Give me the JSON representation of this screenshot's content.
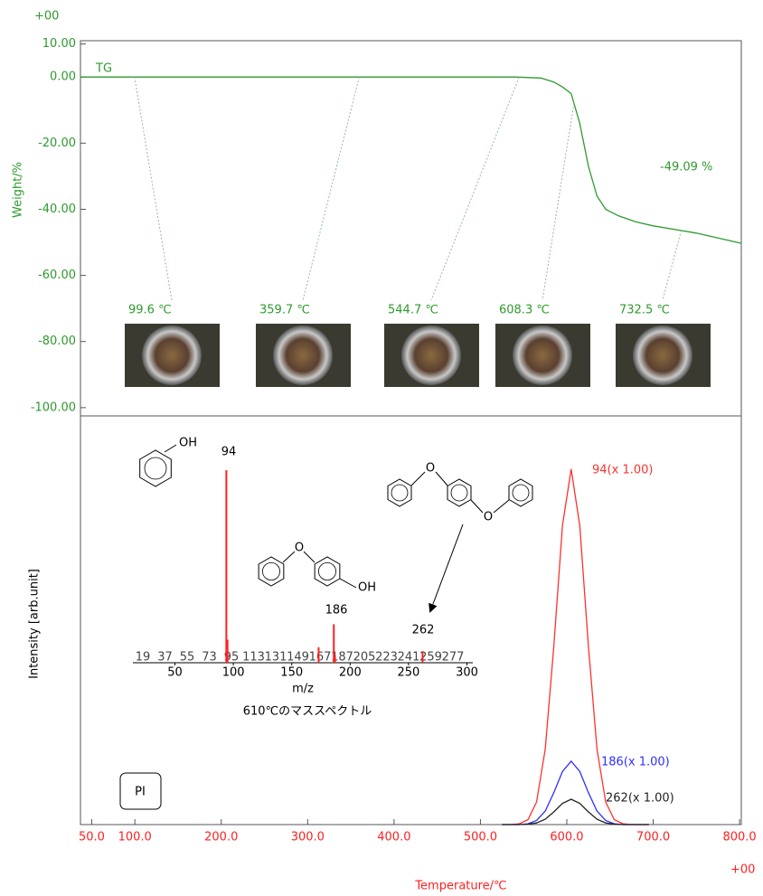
{
  "chart_data": [
    {
      "type": "line",
      "y_label": "Weight/%",
      "y_exponent": "+00",
      "xlim": [
        37,
        802
      ],
      "ylim": [
        -102.5,
        11
      ],
      "yticks": [
        {
          "value": 10,
          "label": "10.00"
        },
        {
          "value": 0,
          "label": "0.00"
        },
        {
          "value": -20,
          "label": "-20.00"
        },
        {
          "value": -40,
          "label": "-40.00"
        },
        {
          "value": -60,
          "label": "-60.00"
        },
        {
          "value": -80,
          "label": "-80.00"
        },
        {
          "value": -100,
          "label": "-100.00"
        }
      ],
      "series": [
        {
          "name": "TG",
          "color": "#2e9a2e",
          "x": [
            37,
            100,
            200,
            300,
            400,
            500,
            540,
            570,
            585,
            595,
            605,
            615,
            625,
            635,
            645,
            660,
            680,
            700,
            750,
            802
          ],
          "values": [
            0,
            0,
            0,
            0,
            0,
            0,
            0,
            -0.3,
            -1.5,
            -3,
            -5,
            -14,
            -27,
            -36,
            -40,
            -42,
            -43.8,
            -45,
            -47.2,
            -50.3
          ]
        }
      ],
      "annotations": [
        "-49.09 %"
      ],
      "photos": [
        {
          "label": "99.6 ℃",
          "temperature": 99.6
        },
        {
          "label": "359.7 ℃",
          "temperature": 359.7
        },
        {
          "label": "544.7 ℃",
          "temperature": 544.7
        },
        {
          "label": "608.3 ℃",
          "temperature": 608.3
        },
        {
          "label": "732.5 ℃",
          "temperature": 732.5
        }
      ]
    },
    {
      "type": "line",
      "x_label": "Temperature/℃",
      "y_label": "Intensity [arb.unit]",
      "x_exponent": "+00",
      "sample_label": "PI",
      "xlim": [
        37,
        802
      ],
      "ylim": [
        0,
        100
      ],
      "xticks": [
        {
          "value": 50,
          "label": "50.0"
        },
        {
          "value": 100,
          "label": "100.0"
        },
        {
          "value": 200,
          "label": "200.0"
        },
        {
          "value": 300,
          "label": "300.0"
        },
        {
          "value": 400,
          "label": "400.0"
        },
        {
          "value": 500,
          "label": "500.0"
        },
        {
          "value": 600,
          "label": "600.0"
        },
        {
          "value": 700,
          "label": "700.0"
        },
        {
          "value": 800,
          "label": "800.0"
        }
      ],
      "x": [
        525,
        535,
        545,
        555,
        565,
        575,
        585,
        595,
        605,
        615,
        625,
        635,
        645,
        655,
        665,
        675,
        685,
        695
      ],
      "series": [
        {
          "name": "94(x 1.00)",
          "color": "#ff3030",
          "values": [
            0,
            0,
            0.2,
            1.2,
            5.5,
            18.4,
            43.6,
            73.2,
            87,
            73.2,
            43.6,
            18.4,
            5.5,
            1.2,
            0.2,
            0,
            0,
            0
          ]
        },
        {
          "name": "186(x 1.00)",
          "color": "#3030ff",
          "values": [
            0,
            0,
            0,
            0.2,
            1,
            3.3,
            7.8,
            13,
            15.5,
            13,
            7.8,
            3.3,
            1,
            0.2,
            0,
            0,
            0,
            0
          ]
        },
        {
          "name": "262(x 1.00)",
          "color": "#222222",
          "values": [
            0,
            0,
            0,
            0.1,
            0.4,
            1.3,
            3.1,
            5.2,
            6.2,
            5.2,
            3.1,
            1.3,
            0.4,
            0.1,
            0,
            0,
            0,
            0
          ]
        }
      ]
    },
    {
      "type": "bar",
      "title": "610℃のマススペクトル",
      "x_label": "m/z",
      "xlim": [
        14,
        305
      ],
      "ylim": [
        0,
        100
      ],
      "xticks": [
        50,
        100,
        150,
        200,
        250,
        300
      ],
      "x": [
        94,
        95,
        173,
        186,
        187,
        262
      ],
      "values": [
        100,
        12,
        8,
        20,
        4,
        6
      ],
      "color": "#ff2020",
      "peak_row": [
        19,
        37,
        55,
        73,
        95,
        113,
        131,
        149,
        167,
        187,
        205,
        223,
        241,
        259,
        277
      ],
      "annotations": [
        "94",
        "186",
        "262"
      ],
      "structure_labels": [
        "OH",
        "O",
        "OH",
        "O",
        "O"
      ]
    }
  ]
}
